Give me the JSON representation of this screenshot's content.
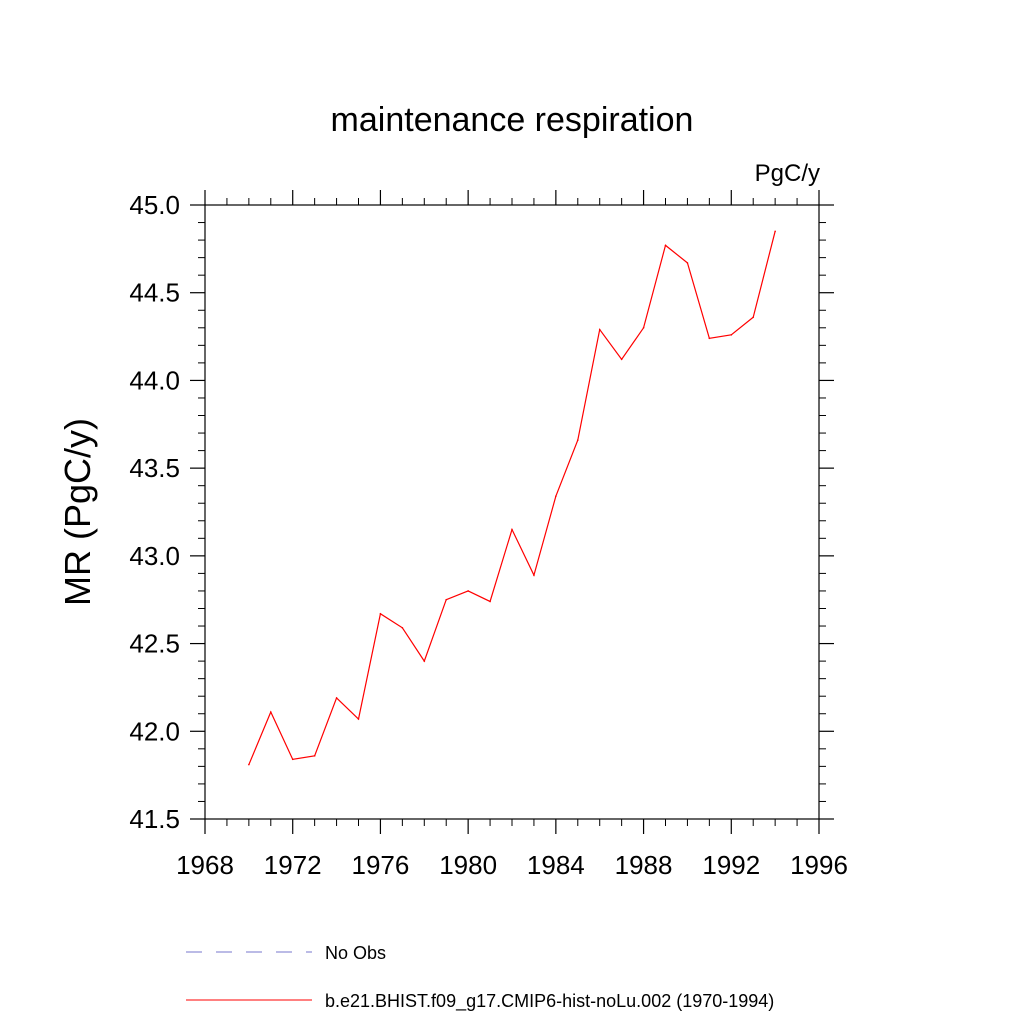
{
  "chart_data": {
    "type": "line",
    "title": "maintenance respiration",
    "units_label": "PgC/y",
    "ylabel": "MR  (PgC/y)",
    "xlabel": "",
    "xlim": [
      1968,
      1996
    ],
    "ylim": [
      41.5,
      45.0
    ],
    "x_ticks": [
      1968,
      1972,
      1976,
      1980,
      1984,
      1988,
      1992,
      1996
    ],
    "y_ticks": [
      "41.5",
      "42.0",
      "42.5",
      "43.0",
      "43.5",
      "44.0",
      "44.5",
      "45.0"
    ],
    "grid": false,
    "legend_position": "bottom",
    "series": [
      {
        "name": "b.e21.BHIST.f09_g17.CMIP6-hist-noLu.002 (1970-1994)",
        "color": "#ff0000",
        "style": "solid",
        "x": [
          1970,
          1971,
          1972,
          1973,
          1974,
          1975,
          1976,
          1977,
          1978,
          1979,
          1980,
          1981,
          1982,
          1983,
          1984,
          1985,
          1986,
          1987,
          1988,
          1989,
          1990,
          1991,
          1992,
          1993,
          1994
        ],
        "y": [
          41.81,
          42.11,
          41.84,
          41.86,
          42.19,
          42.07,
          42.67,
          42.59,
          42.4,
          42.75,
          42.8,
          42.74,
          43.15,
          42.89,
          43.34,
          43.66,
          44.29,
          44.12,
          44.3,
          44.77,
          44.67,
          44.24,
          44.26,
          44.36,
          44.85
        ]
      }
    ],
    "legend": [
      {
        "label": "No Obs",
        "color": "#7777cc",
        "style": "dashed"
      },
      {
        "label": "b.e21.BHIST.f09_g17.CMIP6-hist-noLu.002 (1970-1994)",
        "color": "#ff0000",
        "style": "solid"
      }
    ]
  }
}
